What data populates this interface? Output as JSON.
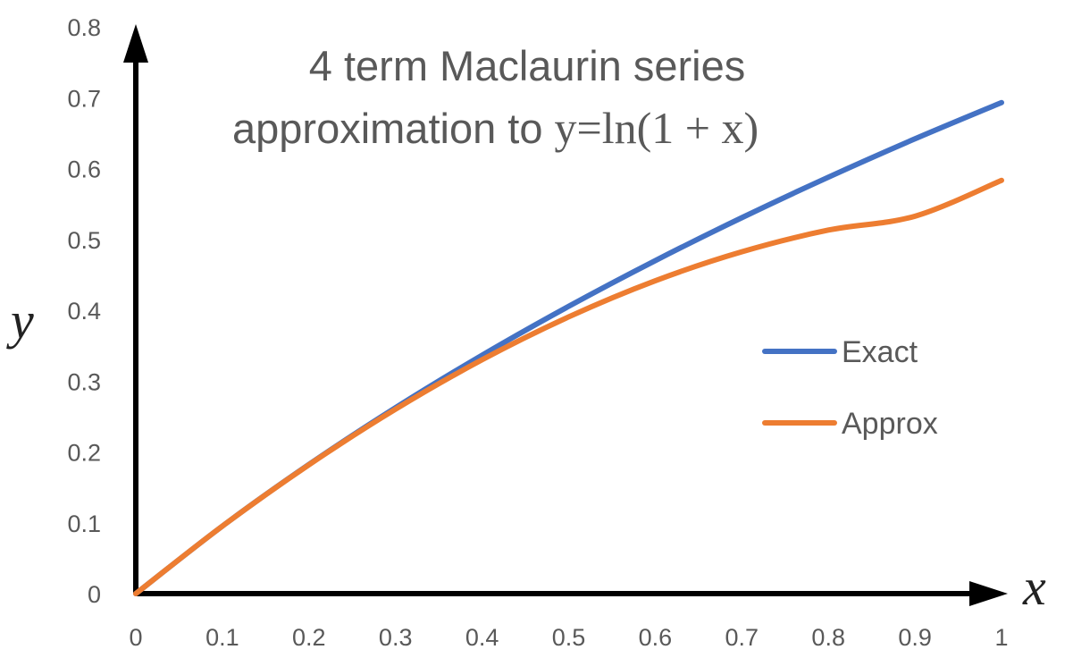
{
  "chart_data": {
    "type": "line",
    "title_line1": "4 term Maclaurin series",
    "title_line2_text": "approximation to ",
    "title_line2_math": "y=ln(1 + x)",
    "xlabel": "x",
    "ylabel": "y",
    "xlim": [
      0,
      1
    ],
    "ylim": [
      0,
      0.8
    ],
    "x_ticks": [
      "0",
      "0.1",
      "0.2",
      "0.3",
      "0.4",
      "0.5",
      "0.6",
      "0.7",
      "0.8",
      "0.9",
      "1"
    ],
    "y_ticks": [
      "0",
      "0.1",
      "0.2",
      "0.3",
      "0.4",
      "0.5",
      "0.6",
      "0.7",
      "0.8"
    ],
    "grid": false,
    "legend_position": "right",
    "x": [
      0,
      0.1,
      0.2,
      0.3,
      0.4,
      0.5,
      0.6,
      0.7,
      0.8,
      0.9,
      1
    ],
    "series": [
      {
        "name": "Exact",
        "color": "#4472C4",
        "values": [
          0,
          0.0953,
          0.1823,
          0.2624,
          0.3365,
          0.4055,
          0.47,
          0.5306,
          0.5878,
          0.6419,
          0.6931
        ]
      },
      {
        "name": "Approx",
        "color": "#ED7D31",
        "values": [
          0,
          0.0953,
          0.1819,
          0.2603,
          0.3301,
          0.3906,
          0.4416,
          0.4825,
          0.5131,
          0.5327,
          0.5833
        ]
      }
    ]
  }
}
